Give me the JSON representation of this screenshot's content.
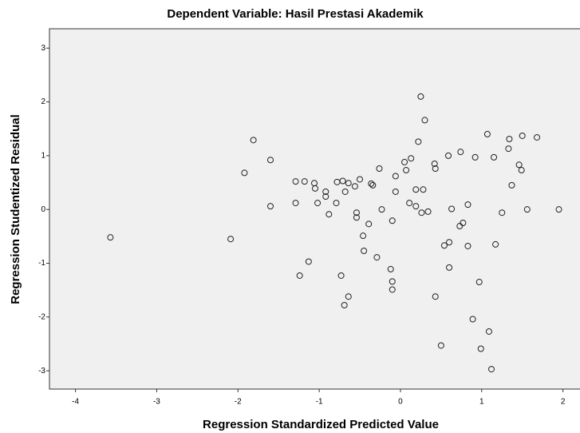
{
  "chart_data": {
    "type": "scatter",
    "title": "Dependent Variable: Hasil Prestasi Akademik",
    "x_label": "Regression Standardized Predicted Value",
    "y_label": "Regression Studentized Residual",
    "x": [
      -3.57,
      -2.09,
      -1.92,
      -1.81,
      -1.6,
      -1.6,
      -1.13,
      -1.24,
      -1.29,
      -1.29,
      -1.18,
      -1.06,
      -1.05,
      -1.02,
      -0.92,
      -0.92,
      -0.88,
      -0.79,
      -0.78,
      -0.71,
      -0.68,
      -0.64,
      -0.56,
      -0.54,
      -0.54,
      -0.73,
      -0.69,
      -0.64,
      -0.5,
      -0.46,
      -0.45,
      -0.39,
      -0.36,
      -0.34,
      -0.29,
      -0.26,
      -0.23,
      -0.1,
      -0.12,
      -0.1,
      -0.1,
      -0.06,
      -0.06,
      0.05,
      0.07,
      0.11,
      0.13,
      0.19,
      0.19,
      0.22,
      0.25,
      0.26,
      0.28,
      0.3,
      0.34,
      0.42,
      0.43,
      0.43,
      0.5,
      0.54,
      0.59,
      0.6,
      0.6,
      0.63,
      0.73,
      0.77,
      0.74,
      0.83,
      0.83,
      0.92,
      0.89,
      0.97,
      0.99,
      1.07,
      1.09,
      1.12,
      1.15,
      1.17,
      1.25,
      1.33,
      1.34,
      1.37,
      1.46,
      1.49,
      1.5,
      1.56,
      1.68,
      1.95
    ],
    "values": [
      -0.52,
      -0.55,
      0.68,
      1.29,
      0.92,
      0.06,
      -0.97,
      -1.23,
      0.52,
      0.12,
      0.52,
      0.49,
      0.39,
      0.12,
      0.33,
      0.24,
      -0.09,
      0.12,
      0.51,
      0.53,
      0.33,
      0.49,
      0.43,
      -0.06,
      -0.15,
      -1.23,
      -1.78,
      -1.62,
      0.56,
      -0.49,
      -0.77,
      -0.27,
      0.48,
      0.45,
      -0.89,
      0.76,
      0.0,
      -0.21,
      -1.11,
      -1.34,
      -1.49,
      0.62,
      0.33,
      0.88,
      0.73,
      0.12,
      0.95,
      0.37,
      0.06,
      1.26,
      2.1,
      -0.06,
      0.37,
      1.66,
      -0.04,
      0.85,
      0.76,
      -1.62,
      -2.53,
      -0.67,
      1.0,
      -0.61,
      -1.08,
      0.01,
      -0.31,
      -0.25,
      1.07,
      0.09,
      -0.68,
      0.97,
      -2.04,
      -1.35,
      -2.59,
      1.4,
      -2.27,
      -2.97,
      0.97,
      -0.65,
      -0.06,
      1.13,
      1.31,
      0.45,
      0.83,
      0.73,
      1.37,
      0.0,
      1.34,
      0.0
    ],
    "xlim": [
      -4.32,
      2.21
    ],
    "ylim": [
      -3.34,
      3.36
    ],
    "xticks": [
      -4,
      -3,
      -2,
      -1,
      0,
      1,
      2
    ],
    "yticks": [
      -3,
      -2,
      -1,
      0,
      1,
      2,
      3
    ],
    "marker_color": "#222222",
    "plot_background": "#f0f0f0"
  }
}
